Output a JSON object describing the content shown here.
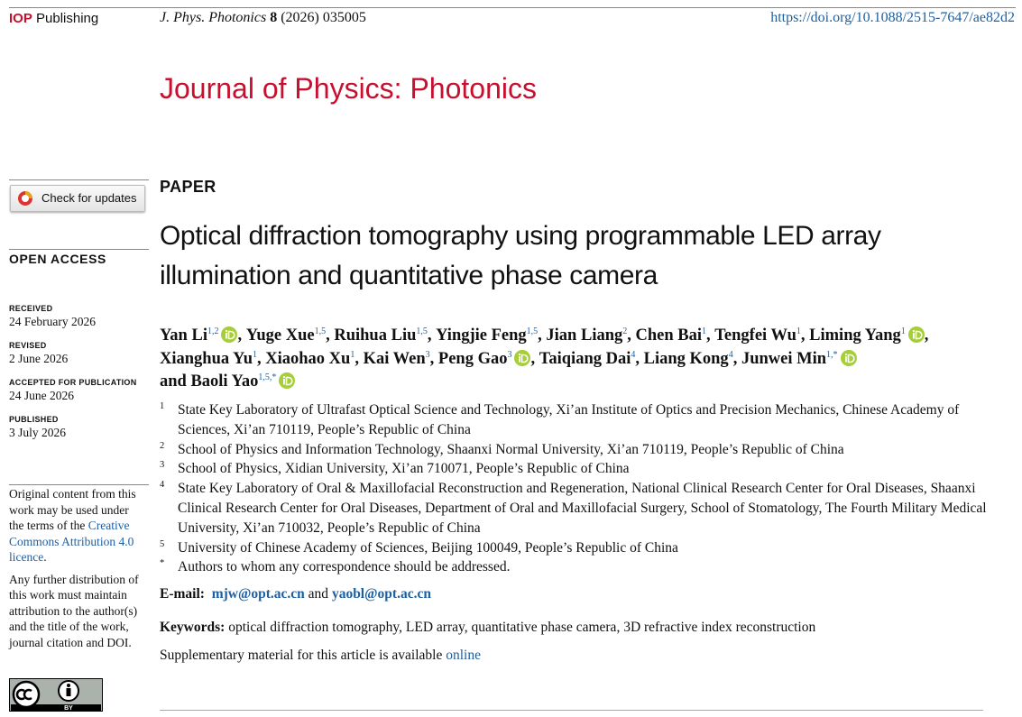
{
  "header": {
    "publisher_mark": "IOP",
    "publisher": "Publishing",
    "citation_journal": "J. Phys. Photonics",
    "citation_volume": "8",
    "citation_rest": "(2026) 035005",
    "doi": "https://doi.org/10.1088/2515-7647/ae82d2"
  },
  "journal_title": "Journal of Physics: Photonics",
  "sidebar": {
    "check_updates": "Check for updates",
    "open_access": "OPEN ACCESS",
    "dates": [
      {
        "label": "RECEIVED",
        "date": "24 February 2026"
      },
      {
        "label": "REVISED",
        "date": "2 June 2026"
      },
      {
        "label": "ACCEPTED FOR PUBLICATION",
        "date": "24 June 2026"
      },
      {
        "label": "PUBLISHED",
        "date": "3 July 2026"
      }
    ],
    "licence_text": "Original content from this work may be used under the terms of the",
    "licence_link": "Creative Commons Attribution 4.0 licence",
    "licence_end": ".",
    "licence_note": "Any further distribution of this work must maintain attribution to the author(s) and the title of the work, journal citation and DOI.",
    "cc_badge": "BY"
  },
  "article": {
    "section": "PAPER",
    "title": "Optical diffraction tomography using programmable LED array illumination and quantitative phase camera",
    "author_separator": ", ",
    "last_joiner": "and ",
    "authors": [
      {
        "name": "Yan Li",
        "aff": "1,2",
        "orcid": true
      },
      {
        "name": "Yuge Xue",
        "aff": "1,5",
        "orcid": false
      },
      {
        "name": "Ruihua Liu",
        "aff": "1,5",
        "orcid": false
      },
      {
        "name": "Yingjie Feng",
        "aff": "1,5",
        "orcid": false
      },
      {
        "name": "Jian Liang",
        "aff": "2",
        "orcid": false
      },
      {
        "name": "Chen Bai",
        "aff": "1",
        "orcid": false
      },
      {
        "name": "Tengfei Wu",
        "aff": "1",
        "orcid": false
      },
      {
        "name": "Liming Yang",
        "aff": "1",
        "orcid": true
      },
      {
        "name": "Xianghua Yu",
        "aff": "1",
        "orcid": false
      },
      {
        "name": "Xiaohao Xu",
        "aff": "1",
        "orcid": false
      },
      {
        "name": "Kai Wen",
        "aff": "3",
        "orcid": false
      },
      {
        "name": "Peng Gao",
        "aff": "3",
        "orcid": true
      },
      {
        "name": "Taiqiang Dai",
        "aff": "4",
        "orcid": false
      },
      {
        "name": "Liang Kong",
        "aff": "4",
        "orcid": false
      },
      {
        "name": "Junwei Min",
        "aff": "1,*",
        "orcid": true
      },
      {
        "name": "Baoli Yao",
        "aff": "1,5,*",
        "orcid": true
      }
    ],
    "affiliations": [
      {
        "mark": "1",
        "text": "State Key Laboratory of Ultrafast Optical Science and Technology, Xi’an Institute of Optics and Precision Mechanics, Chinese Academy of Sciences, Xi’an 710119, People’s Republic of China"
      },
      {
        "mark": "2",
        "text": "School of Physics and Information Technology, Shaanxi Normal University, Xi’an 710119, People’s Republic of China"
      },
      {
        "mark": "3",
        "text": "School of Physics, Xidian University, Xi’an 710071, People’s Republic of China"
      },
      {
        "mark": "4",
        "text": "State Key Laboratory of Oral & Maxillofacial Reconstruction and Regeneration, National Clinical Research Center for Oral Diseases, Shaanxi Clinical Research Center for Oral Diseases, Department of Oral and Maxillofacial Surgery, School of Stomatology, The Fourth Military Medical University, Xi’an 710032, People’s Republic of China"
      },
      {
        "mark": "5",
        "text": "University of Chinese Academy of Sciences, Beijing 100049, People’s Republic of China"
      },
      {
        "mark": "*",
        "text": "Authors to whom any correspondence should be addressed."
      }
    ],
    "email_label": "E-mail:",
    "emails": [
      "mjw@opt.ac.cn",
      "yaobl@opt.ac.cn"
    ],
    "email_joiner": "and",
    "keywords_label": "Keywords:",
    "keywords": "optical diffraction tomography, LED array, quantitative phase camera, 3D refractive index reconstruction",
    "supplementary_text": "Supplementary material for this article is available",
    "supplementary_link": "online"
  }
}
